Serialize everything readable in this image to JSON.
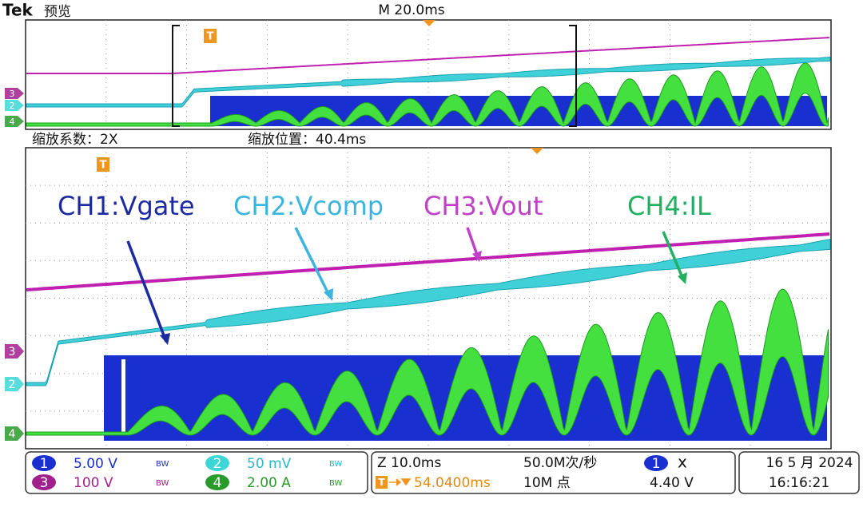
{
  "header": {
    "brand": "Tek",
    "mode": "预览",
    "timebase": "M 20.0ms"
  },
  "zoom": {
    "factor": "缩放系数：2X",
    "position": "缩放位置：40.4ms"
  },
  "trigger_marker": "T",
  "markers": [
    "3",
    "2",
    "4"
  ],
  "annotations": [
    "CH1:Vgate",
    "CH2:Vcomp",
    "CH3:Vout",
    "CH4:IL"
  ],
  "channels": [
    {
      "id": "1",
      "scale": "5.00 V",
      "bw": "BW"
    },
    {
      "id": "2",
      "scale": "50 mV",
      "bw": "BW"
    },
    {
      "id": "3",
      "scale": "100 V",
      "bw": "BW"
    },
    {
      "id": "4",
      "scale": "2.00 A",
      "bw": "BW"
    }
  ],
  "horizontal": {
    "zoom": "Z 10.0ms",
    "trigger_pos": "54.0400ms",
    "sample_rate": "50.0M次/秒",
    "record": "10M 点"
  },
  "trigger": {
    "source": "1",
    "slope": "x",
    "level": "4.40 V"
  },
  "datetime": {
    "date": "16 5 月 2024",
    "time": "16:16:21"
  }
}
